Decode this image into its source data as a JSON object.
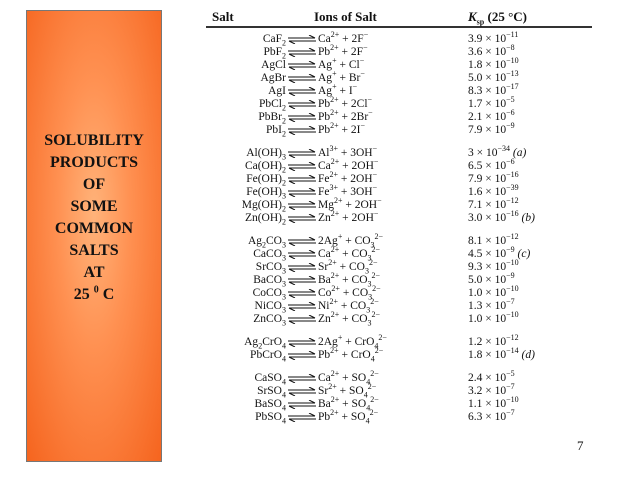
{
  "sidebar": {
    "lines": [
      "SOLUBILITY",
      "PRODUCTS",
      "OF",
      "SOME",
      "COMMON",
      "SALTS",
      "AT"
    ],
    "temp_value": "25",
    "temp_degree": "0",
    "temp_unit": "C"
  },
  "table": {
    "headers": {
      "salt": "Salt",
      "ions": "Ions of Salt",
      "ksp": "Ksp (25 °C)"
    },
    "groups": [
      [
        {
          "salt": "CaF<sub>2</sub>",
          "ions": "Ca<sup>2+</sup> + 2F<sup>−</sup>",
          "ksp": "3.9 × 10<sup>−11</sup>"
        },
        {
          "salt": "PbF<sub>2</sub>",
          "ions": "Pb<sup>2+</sup> + 2F<sup>−</sup>",
          "ksp": "3.6 × 10<sup>−8</sup>"
        },
        {
          "salt": "AgCl",
          "ions": "Ag<sup>+</sup> + Cl<sup>−</sup>",
          "ksp": "1.8 × 10<sup>−10</sup>"
        },
        {
          "salt": "AgBr",
          "ions": "Ag<sup>+</sup> + Br<sup>−</sup>",
          "ksp": "5.0 × 10<sup>−13</sup>"
        },
        {
          "salt": "AgI",
          "ions": "Ag<sup>+</sup> + I<sup>−</sup>",
          "ksp": "8.3 × 10<sup>−17</sup>"
        },
        {
          "salt": "PbCl<sub>2</sub>",
          "ions": "Pb<sup>2+</sup> + 2Cl<sup>−</sup>",
          "ksp": "1.7 × 10<sup>−5</sup>"
        },
        {
          "salt": "PbBr<sub>2</sub>",
          "ions": "Pb<sup>2+</sup> + 2Br<sup>−</sup>",
          "ksp": "2.1 × 10<sup>−6</sup>"
        },
        {
          "salt": "PbI<sub>2</sub>",
          "ions": "Pb<sup>2+</sup> + 2I<sup>−</sup>",
          "ksp": "7.9 × 10<sup>−9</sup>"
        }
      ],
      [
        {
          "salt": "Al(OH)<sub>3</sub>",
          "ions": "Al<sup>3+</sup> + 3OH<sup>−</sup>",
          "ksp": "3 × 10<sup>−34</sup> <i>(a)</i>"
        },
        {
          "salt": "Ca(OH)<sub>2</sub>",
          "ions": "Ca<sup>2+</sup> + 2OH<sup>−</sup>",
          "ksp": "6.5 × 10<sup>−6</sup>"
        },
        {
          "salt": "Fe(OH)<sub>2</sub>",
          "ions": "Fe<sup>2+</sup> + 2OH<sup>−</sup>",
          "ksp": "7.9 × 10<sup>−16</sup>"
        },
        {
          "salt": "Fe(OH)<sub>3</sub>",
          "ions": "Fe<sup>3+</sup> + 3OH<sup>−</sup>",
          "ksp": "1.6 × 10<sup>−39</sup>"
        },
        {
          "salt": "Mg(OH)<sub>2</sub>",
          "ions": "Mg<sup>2+</sup> + 2OH<sup>−</sup>",
          "ksp": "7.1 × 10<sup>−12</sup>"
        },
        {
          "salt": "Zn(OH)<sub>2</sub>",
          "ions": "Zn<sup>2+</sup> + 2OH<sup>−</sup>",
          "ksp": "3.0 × 10<sup>−16</sup> <i>(b)</i>"
        }
      ],
      [
        {
          "salt": "Ag<sub>2</sub>CO<sub>3</sub>",
          "ions": "2Ag<sup>+</sup> + CO<sub>3</sub><sup>2−</sup>",
          "ksp": "8.1 × 10<sup>−12</sup>"
        },
        {
          "salt": "CaCO<sub>3</sub>",
          "ions": "Ca<sup>2+</sup> + CO<sub>3</sub><sup>2−</sup>",
          "ksp": "4.5 × 10<sup>−9</sup> <i>(c)</i>"
        },
        {
          "salt": "SrCO<sub>3</sub>",
          "ions": "Sr<sup>2+</sup> + CO<sub>3</sub><sup>2−</sup>",
          "ksp": "9.3 × 10<sup>−10</sup>"
        },
        {
          "salt": "BaCO<sub>3</sub>",
          "ions": "Ba<sup>2+</sup> + CO<sub>3</sub><sup>2−</sup>",
          "ksp": "5.0 × 10<sup>−9</sup>"
        },
        {
          "salt": "CoCO<sub>3</sub>",
          "ions": "Co<sup>2+</sup> + CO<sub>3</sub><sup>2−</sup>",
          "ksp": "1.0 × 10<sup>−10</sup>"
        },
        {
          "salt": "NiCO<sub>3</sub>",
          "ions": "Ni<sup>2+</sup> + CO<sub>3</sub><sup>2−</sup>",
          "ksp": "1.3 × 10<sup>−7</sup>"
        },
        {
          "salt": "ZnCO<sub>3</sub>",
          "ions": "Zn<sup>2+</sup> + CO<sub>3</sub><sup>2−</sup>",
          "ksp": "1.0 × 10<sup>−10</sup>"
        }
      ],
      [
        {
          "salt": "Ag<sub>2</sub>CrO<sub>4</sub>",
          "ions": "2Ag<sup>+</sup> + CrO<sub>4</sub><sup>2−</sup>",
          "ksp": "1.2 × 10<sup>−12</sup>"
        },
        {
          "salt": "PbCrO<sub>4</sub>",
          "ions": "Pb<sup>2+</sup> + CrO<sub>4</sub><sup>2−</sup>",
          "ksp": "1.8 × 10<sup>−14</sup> <i>(d)</i>"
        }
      ],
      [
        {
          "salt": "CaSO<sub>4</sub>",
          "ions": "Ca<sup>2+</sup> + SO<sub>4</sub><sup>2−</sup>",
          "ksp": "2.4 × 10<sup>−5</sup>"
        },
        {
          "salt": "SrSO<sub>4</sub>",
          "ions": "Sr<sup>2+</sup> + SO<sub>4</sub><sup>2−</sup>",
          "ksp": "3.2 × 10<sup>−7</sup>"
        },
        {
          "salt": "BaSO<sub>4</sub>",
          "ions": "Ba<sup>2+</sup> + SO<sub>4</sub><sup>2−</sup>",
          "ksp": "1.1 × 10<sup>−10</sup>"
        },
        {
          "salt": "PbSO<sub>4</sub>",
          "ions": "Pb<sup>2+</sup> + SO<sub>4</sub><sup>2−</sup>",
          "ksp": "6.3 × 10<sup>−7</sup>"
        }
      ]
    ]
  },
  "page_number": "7"
}
